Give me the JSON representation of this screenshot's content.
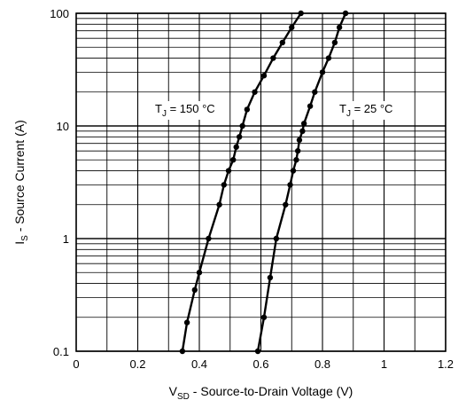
{
  "chart_data": {
    "type": "line",
    "x_scale": "linear",
    "y_scale": "log",
    "xlim": [
      0,
      1.2
    ],
    "ylim": [
      0.1,
      100
    ],
    "x_ticks": [
      "0",
      "0.2",
      "0.4",
      "0.6",
      "0.8",
      "1",
      "1.2"
    ],
    "y_ticks": [
      "0.1",
      "1",
      "10",
      "100"
    ],
    "grid": true,
    "xlabel": {
      "main": "V",
      "sub": "SD",
      "rest": " - Source-to-Drain Voltage (V)"
    },
    "ylabel": {
      "main": "I",
      "sub": "S",
      "rest": " - Source Current (A)"
    },
    "series": [
      {
        "name": "TJ = 150 °C",
        "label_parts": {
          "main": "T",
          "sub": "J",
          "rest": " = 150 °C"
        },
        "points": [
          [
            0.345,
            0.1
          ],
          [
            0.36,
            0.18
          ],
          [
            0.385,
            0.35
          ],
          [
            0.4,
            0.5
          ],
          [
            0.43,
            1.0
          ],
          [
            0.465,
            2.0
          ],
          [
            0.48,
            3.0
          ],
          [
            0.495,
            4.0
          ],
          [
            0.51,
            5.0
          ],
          [
            0.52,
            6.5
          ],
          [
            0.53,
            8.0
          ],
          [
            0.54,
            10.0
          ],
          [
            0.555,
            14.0
          ],
          [
            0.58,
            20.0
          ],
          [
            0.61,
            28.0
          ],
          [
            0.64,
            40.0
          ],
          [
            0.67,
            55.0
          ],
          [
            0.7,
            75.0
          ],
          [
            0.73,
            100.0
          ]
        ]
      },
      {
        "name": "TJ = 25 °C",
        "label_parts": {
          "main": "T",
          "sub": "J",
          "rest": " = 25 °C"
        },
        "points": [
          [
            0.59,
            0.1
          ],
          [
            0.61,
            0.2
          ],
          [
            0.63,
            0.45
          ],
          [
            0.65,
            1.0
          ],
          [
            0.68,
            2.0
          ],
          [
            0.695,
            3.0
          ],
          [
            0.705,
            4.0
          ],
          [
            0.715,
            5.0
          ],
          [
            0.72,
            6.0
          ],
          [
            0.725,
            7.5
          ],
          [
            0.735,
            9.0
          ],
          [
            0.74,
            10.5
          ],
          [
            0.76,
            15.0
          ],
          [
            0.775,
            20.0
          ],
          [
            0.8,
            30.0
          ],
          [
            0.82,
            40.0
          ],
          [
            0.84,
            55.0
          ],
          [
            0.855,
            75.0
          ],
          [
            0.875,
            100.0
          ]
        ]
      }
    ]
  }
}
